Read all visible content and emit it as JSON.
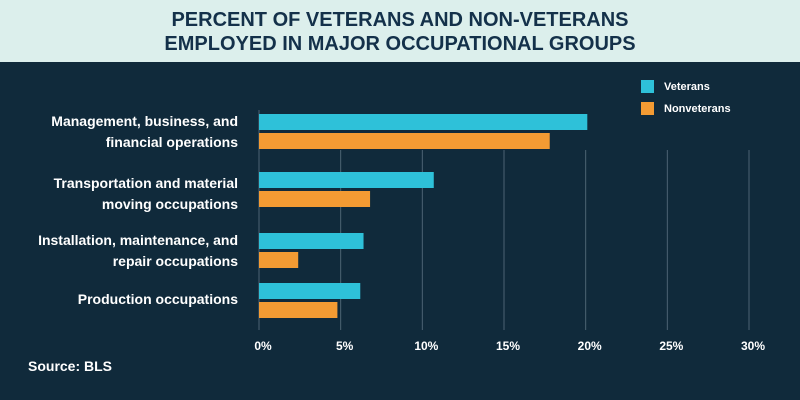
{
  "chart_data": {
    "type": "bar",
    "orientation": "horizontal",
    "title": "PERCENT OF VETERANS AND NON-VETERANS EMPLOYED IN MAJOR OCCUPATIONAL GROUPS",
    "categories": [
      "Management, business, and financial operations",
      "Transportation and material moving occupations",
      "Installation, maintenance, and repair occupations",
      "Production occupations"
    ],
    "series": [
      {
        "name": "Veterans",
        "color": "#2ec1d9",
        "values": [
          20.1,
          10.7,
          6.4,
          6.2
        ]
      },
      {
        "name": "Nonveterans",
        "color": "#f39b33",
        "values": [
          17.8,
          6.8,
          2.4,
          4.8
        ]
      }
    ],
    "xlim": [
      0,
      30
    ],
    "xticks": [
      {
        "value": 0,
        "label": "0%"
      },
      {
        "value": 5,
        "label": "5%"
      },
      {
        "value": 10,
        "label": "10%"
      },
      {
        "value": 15,
        "label": "15%"
      },
      {
        "value": 20,
        "label": "20%"
      },
      {
        "value": 25,
        "label": "25%"
      },
      {
        "value": 30,
        "label": "30%"
      }
    ],
    "grid": true,
    "legend": "top-right",
    "source": "Source: BLS"
  }
}
